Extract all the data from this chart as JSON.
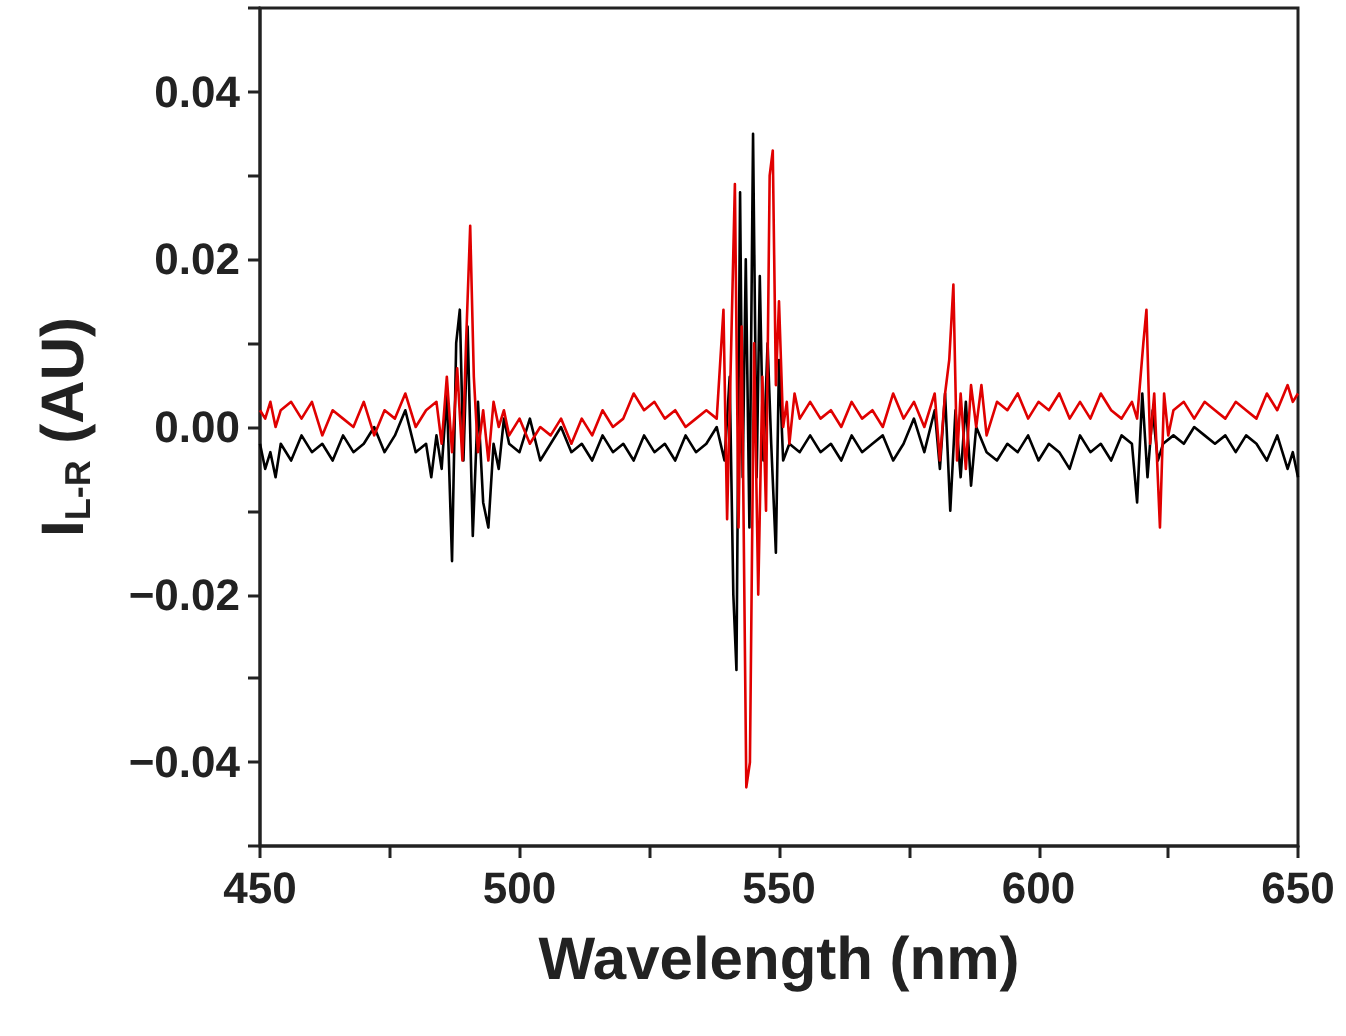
{
  "chart_data": {
    "type": "line",
    "xlabel": "Wavelength (nm)",
    "ylabel": "I$_{L-R}$ (AU)",
    "xlim": [
      450,
      650
    ],
    "xticks": [
      450,
      {
        "value": 475,
        "label": null
      },
      500,
      {
        "value": 525,
        "label": null
      },
      550,
      {
        "value": 575,
        "label": null
      },
      600,
      {
        "value": 625,
        "label": null
      },
      650
    ],
    "ylim": [
      -0.05,
      0.05
    ],
    "yticks": [
      {
        "value": -0.05,
        "label": null
      },
      -0.04,
      {
        "value": -0.03,
        "label": null
      },
      -0.02,
      {
        "value": -0.01,
        "label": null
      },
      {
        "value": 0,
        "label": "0.00"
      },
      {
        "value": 0.01,
        "label": null
      },
      0.02,
      {
        "value": 0.03,
        "label": null
      },
      0.04,
      {
        "value": 0.05,
        "label": null
      }
    ],
    "grid": false,
    "series": [
      {
        "color": "#000000",
        "x": [
          450,
          451,
          452,
          453,
          454,
          456,
          458,
          460,
          462,
          464,
          466,
          468,
          470,
          472,
          474,
          476,
          478,
          480,
          482,
          483,
          484,
          485,
          486,
          487,
          487.8,
          488.5,
          489.2,
          490,
          491,
          492,
          493,
          494,
          495,
          496,
          497,
          498,
          500,
          502,
          504,
          506,
          508,
          510,
          512,
          514,
          516,
          518,
          520,
          522,
          524,
          526,
          528,
          530,
          532,
          534,
          536,
          538,
          539.5,
          540.5,
          541.2,
          541.8,
          542.5,
          543,
          543.6,
          544.3,
          545,
          545.7,
          546.3,
          547,
          547.8,
          548.5,
          549.4,
          550,
          550.8,
          552,
          554,
          556,
          558,
          560,
          562,
          564,
          566,
          568,
          570,
          572,
          574,
          576,
          578,
          580,
          581,
          582,
          583,
          584,
          585,
          586,
          587,
          588,
          590,
          592,
          594,
          596,
          598,
          600,
          602,
          604,
          606,
          608,
          610,
          612,
          614,
          616,
          618,
          619,
          620,
          621,
          622,
          623,
          624,
          626,
          628,
          630,
          632,
          634,
          636,
          638,
          640,
          642,
          644,
          646,
          648,
          649,
          650
        ],
        "values": [
          -0.002,
          -0.005,
          -0.003,
          -0.006,
          -0.002,
          -0.004,
          -0.001,
          -0.003,
          -0.002,
          -0.004,
          -0.001,
          -0.003,
          -0.002,
          0.0,
          -0.003,
          -0.001,
          0.002,
          -0.003,
          -0.002,
          -0.006,
          -0.001,
          -0.005,
          0.004,
          -0.016,
          0.01,
          0.014,
          -0.004,
          0.012,
          -0.013,
          0.003,
          -0.009,
          -0.012,
          -0.002,
          -0.005,
          0.001,
          -0.002,
          -0.003,
          0.001,
          -0.004,
          -0.002,
          0.0,
          -0.003,
          -0.002,
          -0.004,
          -0.001,
          -0.003,
          -0.002,
          -0.004,
          -0.001,
          -0.003,
          -0.002,
          -0.004,
          -0.001,
          -0.003,
          -0.002,
          0.0,
          -0.004,
          0.006,
          -0.02,
          -0.029,
          0.028,
          -0.006,
          0.02,
          -0.012,
          0.035,
          -0.006,
          0.018,
          -0.004,
          0.01,
          -0.002,
          -0.015,
          0.008,
          -0.004,
          -0.002,
          -0.003,
          -0.001,
          -0.003,
          -0.002,
          -0.004,
          -0.001,
          -0.003,
          -0.002,
          -0.001,
          -0.004,
          -0.002,
          0.001,
          -0.003,
          0.002,
          -0.005,
          0.004,
          -0.01,
          0.002,
          -0.006,
          0.003,
          -0.007,
          0.0,
          -0.003,
          -0.004,
          -0.002,
          -0.003,
          -0.001,
          -0.004,
          -0.002,
          -0.003,
          -0.005,
          -0.001,
          -0.003,
          -0.002,
          -0.004,
          -0.001,
          -0.002,
          -0.009,
          0.004,
          -0.006,
          0.002,
          -0.004,
          -0.002,
          -0.001,
          -0.002,
          0.0,
          -0.001,
          -0.002,
          -0.001,
          -0.003,
          -0.001,
          -0.002,
          -0.004,
          -0.001,
          -0.005,
          -0.003,
          -0.006
        ]
      },
      {
        "color": "#e00000",
        "x": [
          450,
          451,
          452,
          453,
          454,
          456,
          458,
          460,
          462,
          464,
          466,
          468,
          470,
          472,
          474,
          476,
          478,
          480,
          482,
          484,
          485,
          486,
          487,
          488,
          489,
          489.7,
          490.5,
          491.2,
          492,
          493,
          494,
          495,
          496,
          497,
          498,
          500,
          502,
          504,
          506,
          508,
          510,
          512,
          514,
          516,
          518,
          520,
          522,
          524,
          526,
          528,
          530,
          532,
          534,
          536,
          538,
          539.3,
          540,
          540.8,
          541.5,
          542.2,
          542.8,
          543.7,
          544.4,
          545.2,
          546,
          546.8,
          547.5,
          548.2,
          548.8,
          549.4,
          550,
          550.8,
          551.5,
          552,
          553,
          554,
          556,
          558,
          560,
          562,
          564,
          566,
          568,
          570,
          572,
          574,
          576,
          578,
          580,
          581,
          582,
          582.8,
          583.6,
          584.3,
          585,
          586,
          587,
          588,
          589,
          590,
          592,
          594,
          596,
          598,
          600,
          602,
          604,
          606,
          608,
          610,
          612,
          614,
          616,
          618,
          619,
          620.2,
          620.8,
          621.5,
          622.3,
          623.4,
          624.2,
          625,
          626,
          628,
          630,
          632,
          634,
          636,
          638,
          640,
          642,
          644,
          646,
          648,
          649,
          650
        ],
        "values": [
          0.002,
          0.001,
          0.003,
          0.0,
          0.002,
          0.003,
          0.001,
          0.003,
          -0.001,
          0.002,
          0.001,
          0.0,
          0.003,
          -0.001,
          0.002,
          0.001,
          0.004,
          0.0,
          0.002,
          0.003,
          -0.002,
          0.006,
          -0.003,
          0.007,
          -0.004,
          0.01,
          0.024,
          0.006,
          -0.003,
          0.002,
          -0.004,
          0.003,
          0.0,
          0.002,
          -0.001,
          0.001,
          -0.002,
          0.0,
          -0.001,
          0.001,
          -0.002,
          0.001,
          -0.001,
          0.002,
          0.0,
          0.001,
          0.004,
          0.002,
          0.003,
          0.001,
          0.002,
          0.0,
          0.001,
          0.002,
          0.001,
          0.014,
          -0.011,
          0.01,
          0.029,
          -0.012,
          0.012,
          -0.043,
          -0.04,
          0.01,
          -0.02,
          0.006,
          -0.01,
          0.03,
          0.033,
          0.005,
          0.015,
          0.0,
          0.003,
          -0.002,
          0.004,
          0.001,
          0.003,
          0.001,
          0.002,
          0.0,
          0.003,
          0.001,
          0.002,
          0.0,
          0.004,
          0.001,
          0.003,
          0.0,
          0.004,
          -0.004,
          0.004,
          0.008,
          0.017,
          -0.004,
          0.004,
          -0.005,
          0.005,
          0.0,
          0.005,
          -0.001,
          0.003,
          0.002,
          0.004,
          0.001,
          0.003,
          0.002,
          0.004,
          0.001,
          0.003,
          0.001,
          0.004,
          0.002,
          0.001,
          0.003,
          0.001,
          0.01,
          0.014,
          -0.002,
          0.004,
          -0.012,
          0.004,
          -0.001,
          0.002,
          0.003,
          0.001,
          0.003,
          0.002,
          0.001,
          0.003,
          0.002,
          0.001,
          0.004,
          0.002,
          0.005,
          0.003,
          0.004
        ]
      }
    ]
  }
}
